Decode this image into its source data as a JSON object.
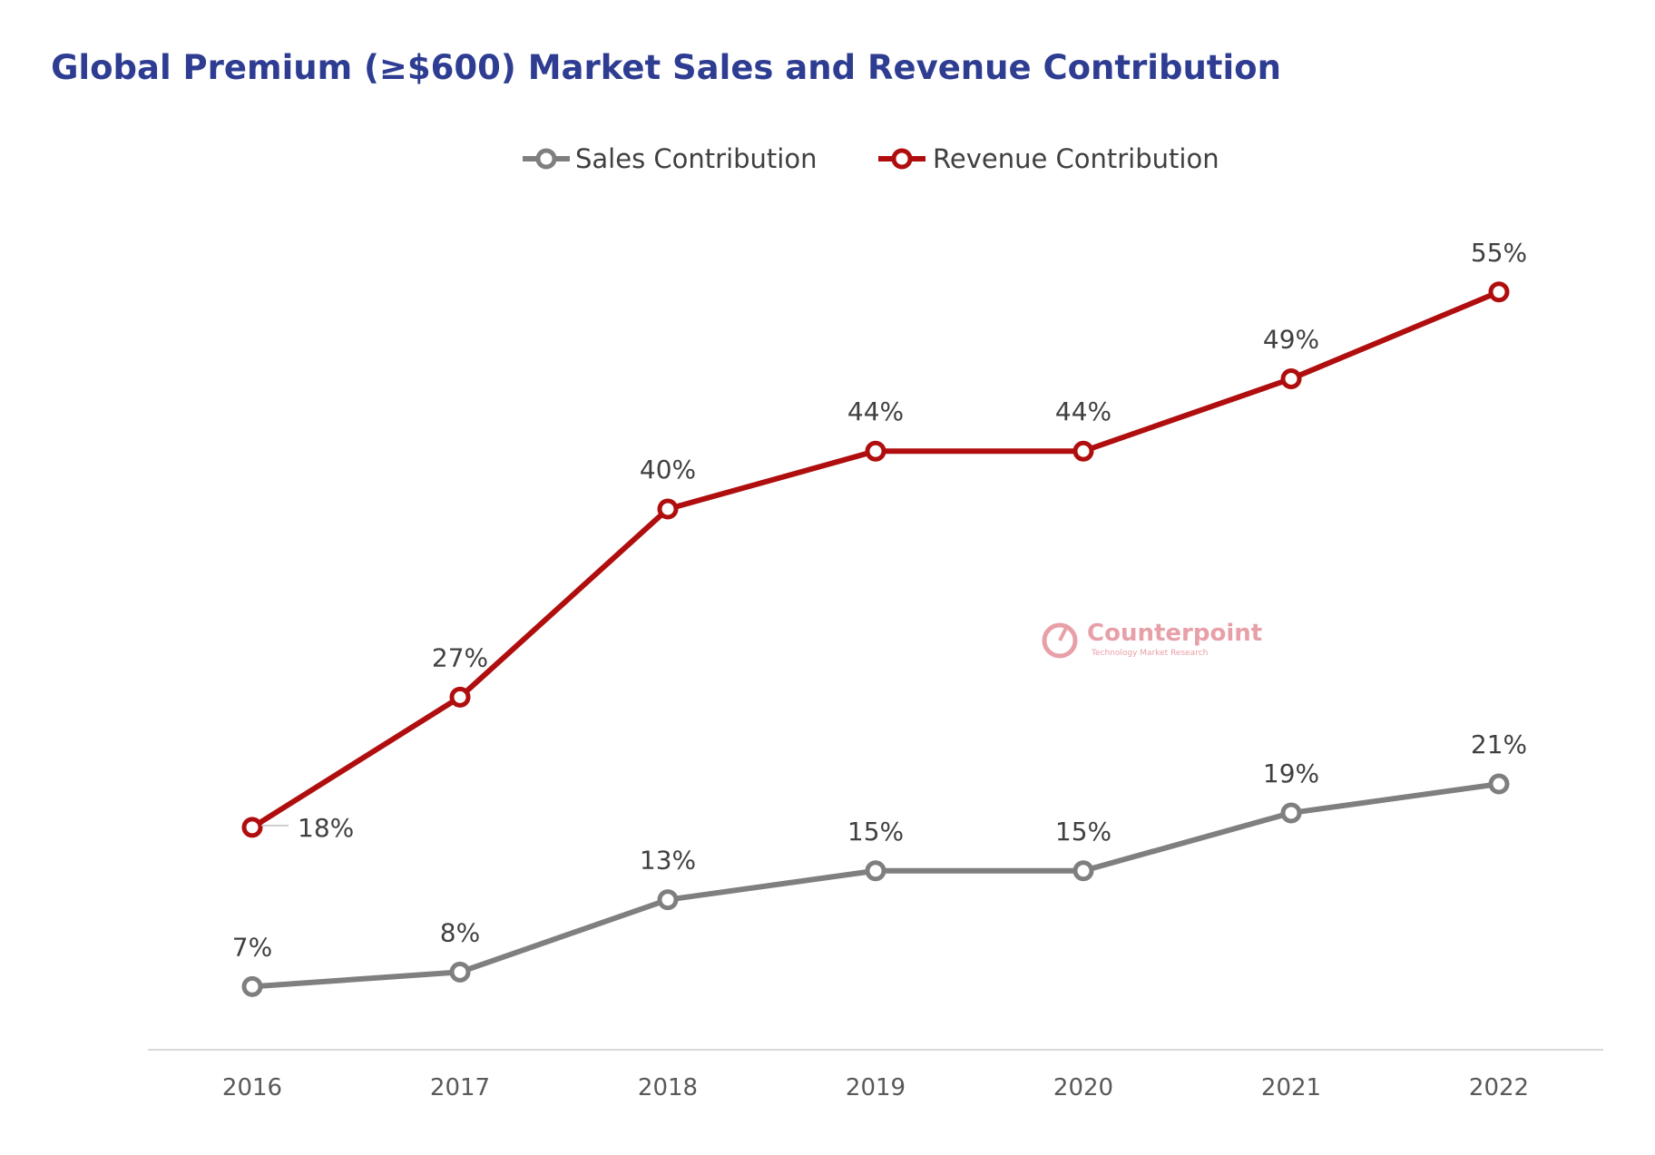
{
  "chart_data": {
    "type": "line",
    "title": "Global Premium (≥$600) Market Sales and Revenue Contribution",
    "categories": [
      "2016",
      "2017",
      "2018",
      "2019",
      "2020",
      "2021",
      "2022"
    ],
    "ylim": [
      0,
      70
    ],
    "grid": false,
    "legend_position": "top-center",
    "series": [
      {
        "name": "Sales Contribution",
        "color": "#7F7F7F",
        "values": [
          7,
          8,
          13,
          15,
          15,
          19,
          21
        ],
        "labels": [
          "7%",
          "8%",
          "13%",
          "15%",
          "15%",
          "19%",
          "21%"
        ]
      },
      {
        "name": "Revenue Contribution",
        "color": "#B00E0E",
        "values": [
          18,
          27,
          40,
          44,
          44,
          49,
          55
        ],
        "labels": [
          "18%",
          "27%",
          "40%",
          "44%",
          "44%",
          "49%",
          "55%"
        ]
      }
    ]
  },
  "watermark": {
    "name": "Counterpoint",
    "tagline": "Technology Market Research",
    "color": "#E8A0A8"
  },
  "colors": {
    "title": "#2E3D92",
    "axis": "#D9D9D9",
    "label": "#404040",
    "tick": "#595959"
  }
}
